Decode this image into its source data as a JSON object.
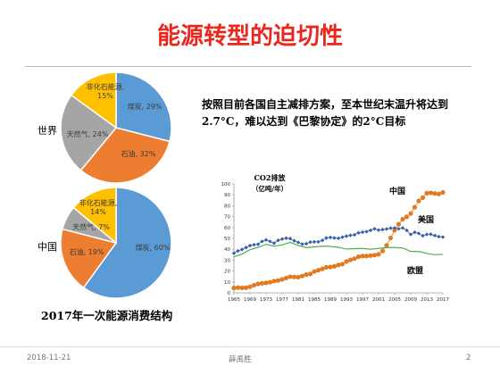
{
  "title": "能源转型的迫切性",
  "description": "按照目前各国自主减排方案，至本世纪末温升将达到2.7°C，难以达到《巴黎协定》的2°C目标",
  "pie_caption": "2017年一次能源消费结构",
  "footer": {
    "date": "2018-11-21",
    "author": "薛禹胜",
    "page": "2"
  },
  "colors": {
    "title": "#e8281e",
    "coal": "#5b9bd5",
    "oil": "#ed7d31",
    "gas": "#a5a5a5",
    "nonfossil": "#ffc000",
    "china": "#e07b22",
    "us": "#3a5fa8",
    "eu": "#4eae4e"
  },
  "chart_data": [
    {
      "type": "pie",
      "label": "世界",
      "slices": [
        {
          "name": "煤炭",
          "value": 29,
          "text": "煤炭, 29%"
        },
        {
          "name": "石油",
          "value": 32,
          "text": "石油, 32%"
        },
        {
          "name": "天然气",
          "value": 24,
          "text": "天然气, 24%"
        },
        {
          "name": "非化石能源",
          "value": 15,
          "text": "非化石能源, 15%"
        }
      ]
    },
    {
      "type": "pie",
      "label": "中国",
      "slices": [
        {
          "name": "煤炭",
          "value": 60,
          "text": "煤炭, 60%"
        },
        {
          "name": "石油",
          "value": 19,
          "text": "石油, 19%"
        },
        {
          "name": "天然气",
          "value": 7,
          "text": "天然气, 7%"
        },
        {
          "name": "非化石能源",
          "value": 14,
          "text": "非化石能源, 14%"
        }
      ]
    },
    {
      "type": "line",
      "ylabel_line1": "CO2排放",
      "ylabel_line2": "（亿吨/年）",
      "x_ticks": [
        "1965",
        "1969",
        "1973",
        "1977",
        "1981",
        "1985",
        "1989",
        "1993",
        "1997",
        "2001",
        "2005",
        "2009",
        "2013",
        "2017"
      ],
      "xlim": [
        1965,
        2017
      ],
      "ylim": [
        0,
        100
      ],
      "y_ticks": [
        0,
        10,
        20,
        30,
        40,
        50,
        60,
        70,
        80,
        90,
        100
      ],
      "series": [
        {
          "name": "中国",
          "x": [
            1965,
            1966,
            1967,
            1968,
            1969,
            1970,
            1971,
            1972,
            1973,
            1974,
            1975,
            1976,
            1977,
            1978,
            1979,
            1980,
            1981,
            1982,
            1983,
            1984,
            1985,
            1986,
            1987,
            1988,
            1989,
            1990,
            1991,
            1992,
            1993,
            1994,
            1995,
            1996,
            1997,
            1998,
            1999,
            2000,
            2001,
            2002,
            2003,
            2004,
            2005,
            2006,
            2007,
            2008,
            2009,
            2010,
            2011,
            2012,
            2013,
            2014,
            2015,
            2016,
            2017
          ],
          "y": [
            4.5,
            4.8,
            4.6,
            4.7,
            5.6,
            7,
            8.2,
            8.8,
            9.2,
            9.8,
            10.8,
            11.3,
            12.4,
            13.6,
            14.8,
            14.6,
            14.4,
            15.4,
            16.8,
            17.3,
            19.6,
            20.8,
            22,
            23.4,
            23.8,
            24.4,
            25.6,
            26.4,
            28.8,
            30.2,
            31.4,
            33.2,
            33.8,
            33.8,
            34.2,
            34.6,
            35.4,
            38.4,
            43.6,
            50.4,
            57.4,
            63,
            67.6,
            69.8,
            72.8,
            78.6,
            84.4,
            87.4,
            91.5,
            91.8,
            91.2,
            90.8,
            92.2
          ]
        },
        {
          "name": "美国",
          "x": [
            1965,
            1966,
            1967,
            1968,
            1969,
            1970,
            1971,
            1972,
            1973,
            1974,
            1975,
            1976,
            1977,
            1978,
            1979,
            1980,
            1981,
            1982,
            1983,
            1984,
            1985,
            1986,
            1987,
            1988,
            1989,
            1990,
            1991,
            1992,
            1993,
            1994,
            1995,
            1996,
            1997,
            1998,
            1999,
            2000,
            2001,
            2002,
            2003,
            2004,
            2005,
            2006,
            2007,
            2008,
            2009,
            2010,
            2011,
            2012,
            2013,
            2014,
            2015,
            2016,
            2017
          ],
          "y": [
            36.4,
            38.5,
            39.8,
            41.6,
            43.4,
            44.2,
            44.6,
            47.2,
            48.6,
            47.2,
            45.6,
            48.2,
            49.4,
            50.2,
            49.8,
            47.8,
            46.3,
            44.8,
            45.1,
            46.6,
            46.8,
            46.9,
            48.2,
            50.4,
            50.9,
            50.4,
            50.1,
            51.1,
            52.1,
            52.8,
            53.3,
            55.1,
            55.7,
            56.2,
            57.4,
            58.8,
            57.6,
            58.1,
            58.6,
            59.4,
            59.6,
            58.8,
            59.6,
            57.4,
            53.6,
            55.6,
            54.6,
            52.4,
            53.6,
            53.8,
            52.6,
            51.6,
            51.2
          ]
        },
        {
          "name": "欧盟",
          "x": [
            1965,
            1967,
            1969,
            1971,
            1973,
            1975,
            1977,
            1979,
            1981,
            1983,
            1985,
            1987,
            1989,
            1991,
            1993,
            1995,
            1997,
            1999,
            2001,
            2003,
            2005,
            2007,
            2009,
            2011,
            2013,
            2015,
            2017
          ],
          "y": [
            33,
            35.6,
            39.6,
            41.8,
            44.6,
            42.8,
            44,
            46.4,
            43.4,
            41.6,
            42.2,
            42.8,
            42.6,
            41.8,
            40.2,
            40.6,
            40.8,
            40,
            40.8,
            41.6,
            41.6,
            41.2,
            38,
            38,
            36.2,
            35,
            35.4
          ]
        }
      ]
    }
  ]
}
